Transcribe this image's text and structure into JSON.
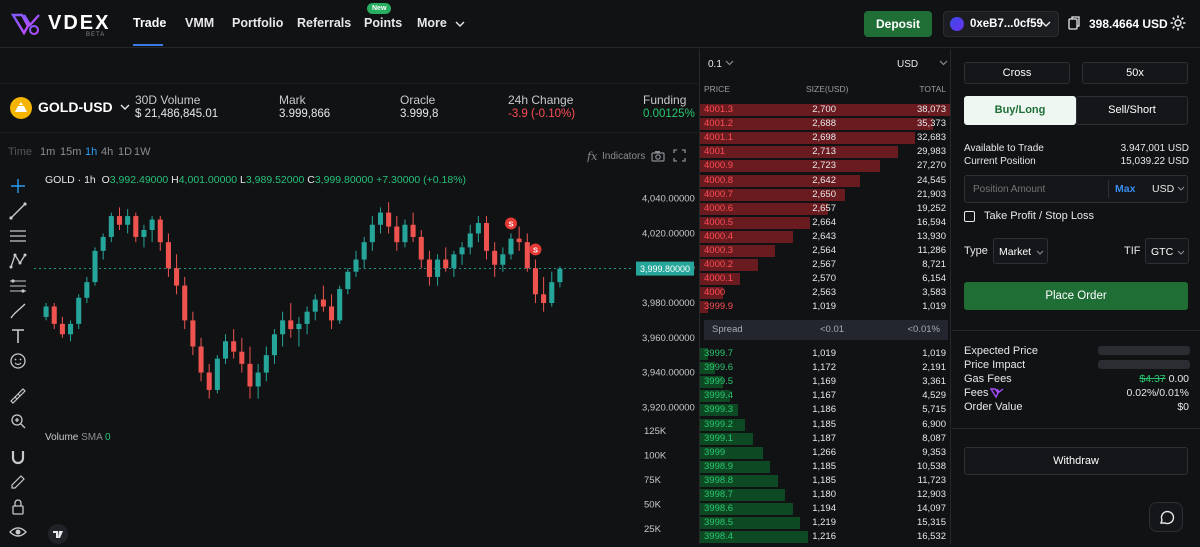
{
  "header": {
    "logo_text": "VDEX",
    "logo_beta": "BETA",
    "nav": [
      {
        "label": "Trade"
      },
      {
        "label": "VMM"
      },
      {
        "label": "Portfolio"
      },
      {
        "label": "Referrals"
      },
      {
        "label": "Points"
      },
      {
        "label": "More"
      }
    ],
    "new_badge": "New",
    "deposit_label": "Deposit",
    "wallet_address": "0xeB7...0cf59",
    "balance": "398.4664 USD"
  },
  "market": {
    "pair": "GOLD-USD",
    "stats": [
      {
        "label": "30D Volume",
        "value": "$ 21,486,845.01"
      },
      {
        "label": "Mark",
        "value": "3.999,866"
      },
      {
        "label": "Oracle",
        "value": "3.999,8"
      },
      {
        "label": "24h Change",
        "value": "-3.9 (-0.10%)"
      },
      {
        "label": "Funding",
        "value": "0.00125%"
      }
    ]
  },
  "chart_toolbar": {
    "timeframes": [
      "Time",
      "1m",
      "15m",
      "1h",
      "4h",
      "1D",
      "1W"
    ],
    "active_timeframe": "1h",
    "indicators_label": "Indicators"
  },
  "chart_legend": {
    "symbol": "GOLD · 1h",
    "o_label": "O",
    "o": "3,992.49000",
    "h_label": "H",
    "h": "4,001.00000",
    "l_label": "L",
    "l": "3,989.52000",
    "c_label": "C",
    "c": "3,999.80000",
    "change": "+7.30000 (+0.18%)",
    "volume_label": "Volume",
    "sma_label": "SMA",
    "sma_value": "0",
    "last_price_tag": "3,999.80000"
  },
  "chart_data": {
    "type": "candlestick",
    "symbol": "GOLD-USD",
    "interval": "1h",
    "price_ticks": [
      "4,040.00000",
      "4,020.00000",
      "4,000.00000",
      "3,980.00000",
      "3,960.00000",
      "3,940.00000",
      "3,920.00000"
    ],
    "price_range": [
      3915,
      4045
    ],
    "volume_ticks": [
      "125K",
      "100K",
      "75K",
      "50K",
      "25K"
    ],
    "colors": {
      "up": "#26a69a",
      "down": "#ef5350"
    },
    "candles": [
      [
        3972,
        3980,
        3970,
        3978
      ],
      [
        3978,
        3980,
        3965,
        3968
      ],
      [
        3968,
        3972,
        3960,
        3962
      ],
      [
        3962,
        3970,
        3958,
        3968
      ],
      [
        3968,
        3985,
        3965,
        3983
      ],
      [
        3983,
        3995,
        3980,
        3992
      ],
      [
        3992,
        4012,
        3990,
        4010
      ],
      [
        4010,
        4020,
        4005,
        4018
      ],
      [
        4018,
        4032,
        4015,
        4030
      ],
      [
        4030,
        4035,
        4022,
        4025
      ],
      [
        4025,
        4034,
        4020,
        4030
      ],
      [
        4030,
        4032,
        4015,
        4018
      ],
      [
        4018,
        4025,
        4012,
        4022
      ],
      [
        4022,
        4030,
        4015,
        4028
      ],
      [
        4028,
        4030,
        4010,
        4015
      ],
      [
        4015,
        4020,
        3995,
        4000
      ],
      [
        4000,
        4008,
        3985,
        3990
      ],
      [
        3990,
        3995,
        3965,
        3970
      ],
      [
        3970,
        3975,
        3950,
        3955
      ],
      [
        3955,
        3960,
        3935,
        3940
      ],
      [
        3940,
        3945,
        3925,
        3930
      ],
      [
        3930,
        3950,
        3928,
        3948
      ],
      [
        3948,
        3962,
        3945,
        3958
      ],
      [
        3958,
        3965,
        3948,
        3952
      ],
      [
        3952,
        3960,
        3940,
        3945
      ],
      [
        3945,
        3955,
        3925,
        3932
      ],
      [
        3932,
        3945,
        3925,
        3940
      ],
      [
        3940,
        3955,
        3935,
        3950
      ],
      [
        3950,
        3965,
        3945,
        3962
      ],
      [
        3962,
        3975,
        3955,
        3970
      ],
      [
        3970,
        3980,
        3960,
        3965
      ],
      [
        3965,
        3972,
        3955,
        3968
      ],
      [
        3968,
        3978,
        3962,
        3975
      ],
      [
        3975,
        3985,
        3970,
        3982
      ],
      [
        3982,
        3990,
        3975,
        3978
      ],
      [
        3978,
        3985,
        3965,
        3970
      ],
      [
        3970,
        3990,
        3968,
        3988
      ],
      [
        3988,
        4000,
        3985,
        3998
      ],
      [
        3998,
        4010,
        3995,
        4005
      ],
      [
        4005,
        4018,
        4000,
        4015
      ],
      [
        4015,
        4030,
        4010,
        4025
      ],
      [
        4025,
        4035,
        4020,
        4032
      ],
      [
        4032,
        4038,
        4020,
        4024
      ],
      [
        4024,
        4030,
        4010,
        4015
      ],
      [
        4015,
        4028,
        4012,
        4025
      ],
      [
        4025,
        4032,
        4015,
        4018
      ],
      [
        4018,
        4022,
        4000,
        4005
      ],
      [
        4005,
        4010,
        3990,
        3995
      ],
      [
        3995,
        4008,
        3990,
        4005
      ],
      [
        4005,
        4012,
        3998,
        4000
      ],
      [
        4000,
        4010,
        3995,
        4008
      ],
      [
        4008,
        4015,
        4002,
        4012
      ],
      [
        4012,
        4025,
        4008,
        4020
      ],
      [
        4020,
        4030,
        4015,
        4026
      ],
      [
        4026,
        4030,
        4005,
        4010
      ],
      [
        4010,
        4015,
        3995,
        4002
      ],
      [
        4002,
        4012,
        3998,
        4008
      ],
      [
        4008,
        4020,
        4005,
        4017
      ],
      [
        4017,
        4024,
        4010,
        4015
      ],
      [
        4015,
        4020,
        3998,
        4000
      ],
      [
        4000,
        4005,
        3980,
        3985
      ],
      [
        3985,
        3995,
        3975,
        3980
      ],
      [
        3980,
        3998,
        3978,
        3992
      ],
      [
        3992,
        4001,
        3989,
        3999.8
      ]
    ],
    "signals": [
      {
        "label": "S",
        "index": 57
      },
      {
        "label": "S",
        "index": 60
      }
    ]
  },
  "orderbook": {
    "tick_size": "0.1",
    "currency": "USD",
    "headers": {
      "price": "PRICE",
      "size": "SIZE(USD)",
      "total": "TOTAL"
    },
    "asks": [
      {
        "price": "4001.3",
        "size": "2,700",
        "total": "38,073",
        "depth": 1.0
      },
      {
        "price": "4001.2",
        "size": "2,688",
        "total": "35,373",
        "depth": 0.93
      },
      {
        "price": "4001.1",
        "size": "2,698",
        "total": "32,683",
        "depth": 0.86
      },
      {
        "price": "4001",
        "size": "2,713",
        "total": "29,983",
        "depth": 0.79
      },
      {
        "price": "4000.9",
        "size": "2,723",
        "total": "27,270",
        "depth": 0.72
      },
      {
        "price": "4000.8",
        "size": "2,642",
        "total": "24,545",
        "depth": 0.64
      },
      {
        "price": "4000.7",
        "size": "2,650",
        "total": "21,903",
        "depth": 0.58
      },
      {
        "price": "4000.6",
        "size": "2,657",
        "total": "19,252",
        "depth": 0.51
      },
      {
        "price": "4000.5",
        "size": "2,664",
        "total": "16,594",
        "depth": 0.44
      },
      {
        "price": "4000.4",
        "size": "2,643",
        "total": "13,930",
        "depth": 0.37
      },
      {
        "price": "4000.3",
        "size": "2,564",
        "total": "11,286",
        "depth": 0.3
      },
      {
        "price": "4000.2",
        "size": "2,567",
        "total": "8,721",
        "depth": 0.23
      },
      {
        "price": "4000.1",
        "size": "2,570",
        "total": "6,154",
        "depth": 0.16
      },
      {
        "price": "4000",
        "size": "2,563",
        "total": "3,583",
        "depth": 0.09
      },
      {
        "price": "3999.9",
        "size": "1,019",
        "total": "1,019",
        "depth": 0.03
      }
    ],
    "spread": {
      "label": "Spread",
      "value": "<0.01",
      "percent": "<0.01%"
    },
    "bids": [
      {
        "price": "3999.7",
        "size": "1,019",
        "total": "1,019",
        "depth": 0.03
      },
      {
        "price": "3999.6",
        "size": "1,172",
        "total": "2,191",
        "depth": 0.06
      },
      {
        "price": "3999.5",
        "size": "1,169",
        "total": "3,361",
        "depth": 0.09
      },
      {
        "price": "3999.4",
        "size": "1,167",
        "total": "4,529",
        "depth": 0.12
      },
      {
        "price": "3999.3",
        "size": "1,186",
        "total": "5,715",
        "depth": 0.15
      },
      {
        "price": "3999.2",
        "size": "1,185",
        "total": "6,900",
        "depth": 0.18
      },
      {
        "price": "3999.1",
        "size": "1,187",
        "total": "8,087",
        "depth": 0.21
      },
      {
        "price": "3999",
        "size": "1,266",
        "total": "9,353",
        "depth": 0.25
      },
      {
        "price": "3998.9",
        "size": "1,185",
        "total": "10,538",
        "depth": 0.28
      },
      {
        "price": "3998.8",
        "size": "1,185",
        "total": "11,723",
        "depth": 0.31
      },
      {
        "price": "3998.7",
        "size": "1,180",
        "total": "12,903",
        "depth": 0.34
      },
      {
        "price": "3998.6",
        "size": "1,194",
        "total": "14,097",
        "depth": 0.37
      },
      {
        "price": "3998.5",
        "size": "1,219",
        "total": "15,315",
        "depth": 0.4
      },
      {
        "price": "3998.4",
        "size": "1,216",
        "total": "16,532",
        "depth": 0.43
      }
    ]
  },
  "trade_panel": {
    "margin_mode": "Cross",
    "leverage": "50x",
    "side_buy": "Buy/Long",
    "side_sell": "Sell/Short",
    "available_label": "Available to Trade",
    "available_value": "3.947,001 USD",
    "position_label": "Current Position",
    "position_value": "15,039.22 USD",
    "amount_placeholder": "Position Amount",
    "max_label": "Max",
    "amount_currency": "USD",
    "tpsl_label": "Take Profit / Stop Loss",
    "type_label": "Type",
    "type_value": "Market",
    "tif_label": "TIF",
    "tif_value": "GTC",
    "place_order": "Place Order",
    "expected_price_label": "Expected Price",
    "price_impact_label": "Price Impact",
    "gas_fees_label": "Gas Fees",
    "gas_old": "$4.37",
    "gas_new": "0.00",
    "fees_label": "Fees",
    "fees_value": "0.02%/0.01%",
    "order_value_label": "Order Value",
    "order_value": "$0",
    "withdraw_label": "Withdraw"
  },
  "colors": {
    "accent_blue": "#3a7be8",
    "buy_green": "#1e6e36",
    "ask_red": "#ff4d57",
    "bid_green": "#28c76f"
  }
}
